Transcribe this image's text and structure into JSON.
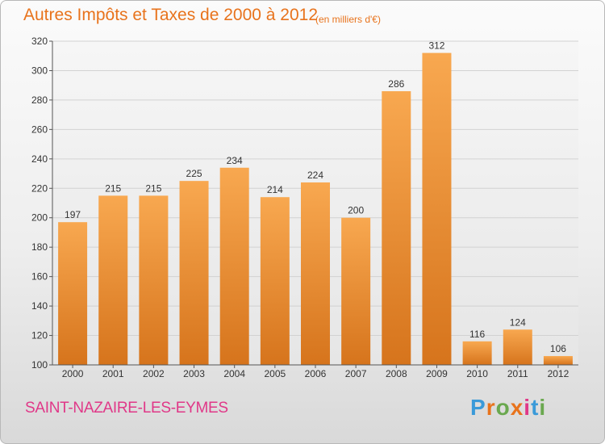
{
  "chart_data": {
    "type": "bar",
    "title": "Autres Impôts et Taxes de 2000 à 2012",
    "subtitle": "(en milliers d'€)",
    "categories": [
      "2000",
      "2001",
      "2002",
      "2003",
      "2004",
      "2005",
      "2006",
      "2007",
      "2008",
      "2009",
      "2010",
      "2011",
      "2012"
    ],
    "values": [
      197,
      215,
      215,
      225,
      234,
      214,
      224,
      200,
      286,
      312,
      116,
      124,
      106
    ],
    "ylim": [
      100,
      320
    ],
    "yticks": [
      100,
      120,
      140,
      160,
      180,
      200,
      220,
      240,
      260,
      280,
      300,
      320
    ],
    "grid": true,
    "bar_color": "#f39a3f"
  },
  "footer": {
    "commune": "SAINT-NAZAIRE-LES-EYMES",
    "logo": "Proxiti",
    "logo_colors": [
      "#3a9ad9",
      "#e8731c",
      "#6aa84f",
      "#e8731c",
      "#e03888",
      "#3a9ad9",
      "#6aa84f"
    ]
  }
}
